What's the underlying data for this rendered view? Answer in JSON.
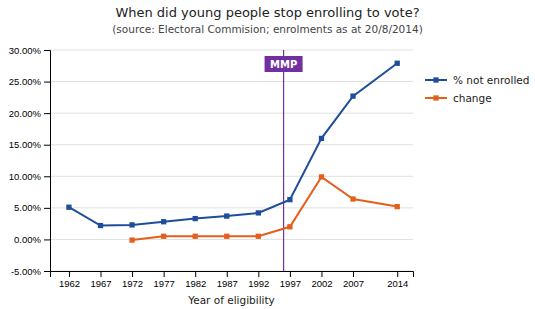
{
  "chart_data": {
    "type": "line",
    "title": "When did young people stop enrolling to vote?",
    "subtitle": "(source: Electoral Commision; enrolments as at 20/8/2014)",
    "x_label": "Year of eligibility",
    "x": [
      1962,
      1967,
      1972,
      1977,
      1982,
      1987,
      1992,
      1997,
      2002,
      2007,
      2014
    ],
    "series": [
      {
        "name": "% not enrolled",
        "color": "#1e4d9b",
        "marker": "square",
        "values": [
          0.051,
          0.022,
          0.023,
          0.028,
          0.033,
          0.037,
          0.042,
          0.063,
          0.16,
          0.227,
          0.279
        ]
      },
      {
        "name": "change",
        "color": "#e2601c",
        "marker": "square",
        "values": [
          null,
          null,
          -0.001,
          0.005,
          0.005,
          0.005,
          0.005,
          0.02,
          0.099,
          0.064,
          0.052
        ]
      }
    ],
    "xlim": [
      1959,
      2016.5
    ],
    "xticks": [
      1962,
      1967,
      1972,
      1977,
      1982,
      1987,
      1992,
      1997,
      2002,
      2007,
      2014
    ],
    "ylim": [
      -0.05,
      0.3
    ],
    "yticks": [
      {
        "value": -0.05,
        "label": "-5.00%"
      },
      {
        "value": 0.0,
        "label": "0.00%"
      },
      {
        "value": 0.05,
        "label": "5.00%"
      },
      {
        "value": 0.1,
        "label": "10.00%"
      },
      {
        "value": 0.15,
        "label": "15.00%"
      },
      {
        "value": 0.2,
        "label": "20.00%"
      },
      {
        "value": 0.25,
        "label": "25.00%"
      },
      {
        "value": 0.3,
        "label": "30.00%"
      }
    ],
    "annotations": [
      {
        "text": "MMP",
        "x": 1996,
        "color": "#7030a0"
      }
    ],
    "grid": true,
    "legend": "right"
  }
}
